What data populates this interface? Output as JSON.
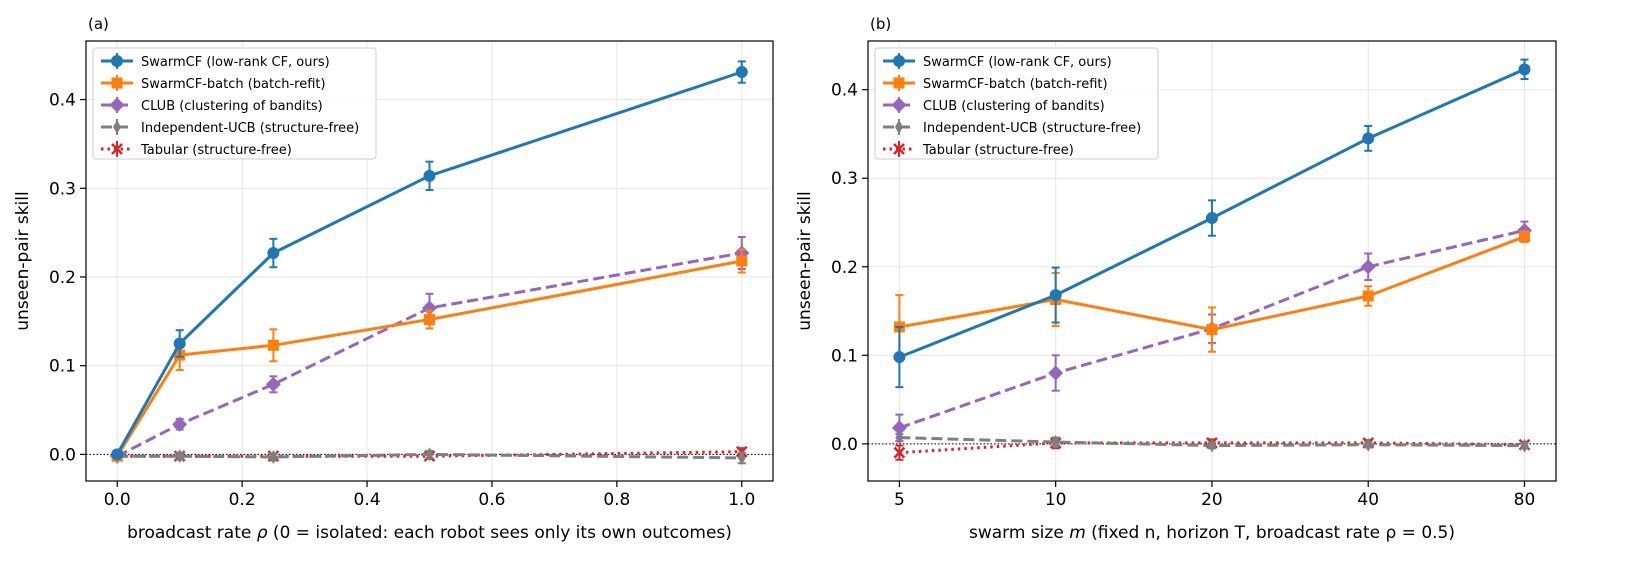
{
  "chart_data": [
    {
      "panel_label": "(a)",
      "type": "line",
      "xlabel_prefix": "broadcast rate ",
      "xlabel_symbol": "ρ",
      "xlabel_suffix": "  (0 = isolated: each robot sees only its own outcomes)",
      "ylabel": "unseen-pair skill",
      "x_scale": "linear",
      "xlim": [
        -0.05,
        1.05
      ],
      "ylim": [
        -0.03,
        0.466
      ],
      "xticks": [
        0.0,
        0.2,
        0.4,
        0.6,
        0.8,
        1.0
      ],
      "xtick_labels": [
        "0.0",
        "0.2",
        "0.4",
        "0.6",
        "0.8",
        "1.0"
      ],
      "yticks": [
        0.0,
        0.1,
        0.2,
        0.3,
        0.4
      ],
      "ytick_labels": [
        "0.0",
        "0.1",
        "0.2",
        "0.3",
        "0.4"
      ],
      "grid": true,
      "zero_line": true,
      "legend_position": "upper-left",
      "series": [
        {
          "name": "SwarmCF (low-rank CF, ours)",
          "color": "#1f77b4",
          "marker": "circle",
          "line": "solid",
          "x": [
            0.0,
            0.1,
            0.25,
            0.5,
            1.0
          ],
          "y": [
            0.0,
            0.125,
            0.227,
            0.314,
            0.431
          ],
          "err": [
            0.004,
            0.015,
            0.016,
            0.016,
            0.012
          ]
        },
        {
          "name": "SwarmCF-batch (batch-refit)",
          "color": "#ff7f0e",
          "marker": "square",
          "line": "solid",
          "x": [
            0.0,
            0.1,
            0.25,
            0.5,
            1.0
          ],
          "y": [
            -0.002,
            0.112,
            0.123,
            0.152,
            0.218
          ],
          "err": [
            0.004,
            0.017,
            0.018,
            0.01,
            0.013
          ]
        },
        {
          "name": "CLUB (clustering of bandits)",
          "color": "#9467bd",
          "marker": "diamond",
          "line": "dashed",
          "x": [
            0.0,
            0.1,
            0.25,
            0.5,
            1.0
          ],
          "y": [
            -0.002,
            0.034,
            0.079,
            0.165,
            0.227
          ],
          "err": [
            0.003,
            0.006,
            0.009,
            0.016,
            0.018
          ]
        },
        {
          "name": "Independent-UCB (structure-free)",
          "color": "#7f7f7f",
          "marker": "thin-diamond",
          "line": "dashed",
          "x": [
            0.0,
            0.1,
            0.25,
            0.5,
            1.0
          ],
          "y": [
            -0.002,
            -0.002,
            -0.003,
            0.0,
            -0.004
          ],
          "err": [
            0.003,
            0.004,
            0.004,
            0.004,
            0.006
          ]
        },
        {
          "name": "Tabular (structure-free)",
          "color": "#d62728",
          "marker": "x",
          "line": "dotted",
          "x": [
            0.0,
            0.1,
            0.25,
            0.5,
            1.0
          ],
          "y": [
            -0.002,
            -0.002,
            -0.002,
            -0.002,
            0.003
          ],
          "err": [
            0.003,
            0.003,
            0.003,
            0.003,
            0.004
          ]
        }
      ]
    },
    {
      "panel_label": "(b)",
      "type": "line",
      "xlabel_prefix": "swarm size ",
      "xlabel_symbol": "m",
      "xlabel_suffix": "  (fixed n, horizon T, broadcast rate ρ = 0.5)",
      "ylabel": "unseen-pair skill",
      "x_scale": "log2",
      "xlim": [
        4.35,
        92
      ],
      "ylim": [
        -0.042,
        0.455
      ],
      "xticks": [
        5,
        10,
        20,
        40,
        80
      ],
      "xtick_labels": [
        "5",
        "10",
        "20",
        "40",
        "80"
      ],
      "yticks": [
        0.0,
        0.1,
        0.2,
        0.3,
        0.4
      ],
      "ytick_labels": [
        "0.0",
        "0.1",
        "0.2",
        "0.3",
        "0.4"
      ],
      "grid": true,
      "zero_line": true,
      "legend_position": "upper-left",
      "series": [
        {
          "name": "SwarmCF (low-rank CF, ours)",
          "color": "#1f77b4",
          "marker": "circle",
          "line": "solid",
          "x": [
            5,
            10,
            20,
            40,
            80
          ],
          "y": [
            0.098,
            0.168,
            0.255,
            0.345,
            0.423
          ],
          "err": [
            0.034,
            0.031,
            0.02,
            0.014,
            0.011
          ]
        },
        {
          "name": "SwarmCF-batch (batch-refit)",
          "color": "#ff7f0e",
          "marker": "square",
          "line": "solid",
          "x": [
            5,
            10,
            20,
            40,
            80
          ],
          "y": [
            0.132,
            0.163,
            0.129,
            0.167,
            0.234
          ],
          "err": [
            0.036,
            0.03,
            0.025,
            0.011,
            0.006
          ]
        },
        {
          "name": "CLUB (clustering of bandits)",
          "color": "#9467bd",
          "marker": "diamond",
          "line": "dashed",
          "x": [
            5,
            10,
            20,
            40,
            80
          ],
          "y": [
            0.018,
            0.08,
            0.13,
            0.2,
            0.241
          ],
          "err": [
            0.015,
            0.02,
            0.016,
            0.015,
            0.01
          ]
        },
        {
          "name": "Independent-UCB (structure-free)",
          "color": "#7f7f7f",
          "marker": "thin-diamond",
          "line": "dashed",
          "x": [
            5,
            10,
            20,
            40,
            80
          ],
          "y": [
            0.007,
            0.002,
            -0.002,
            -0.001,
            -0.002
          ],
          "err": [
            0.004,
            0.004,
            0.003,
            0.003,
            0.003
          ]
        },
        {
          "name": "Tabular (structure-free)",
          "color": "#d62728",
          "marker": "x",
          "line": "dotted",
          "x": [
            5,
            10,
            20,
            40,
            80
          ],
          "y": [
            -0.01,
            0.001,
            0.001,
            0.001,
            -0.001
          ],
          "err": [
            0.008,
            0.006,
            0.004,
            0.003,
            0.003
          ]
        }
      ]
    }
  ]
}
